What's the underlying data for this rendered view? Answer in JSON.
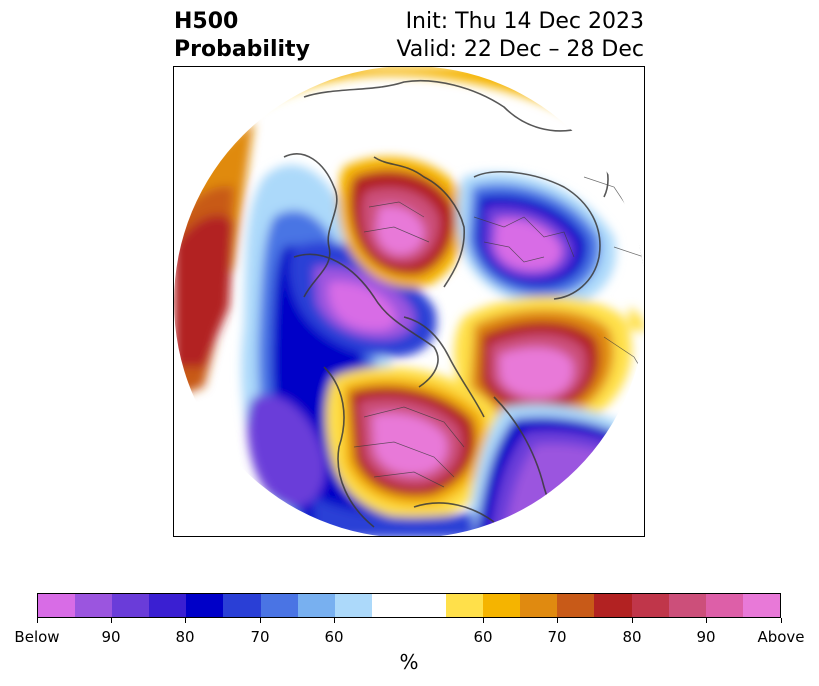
{
  "header": {
    "title_line1": "H500",
    "title_line2": "Probability",
    "init_text": "Init: Thu 14 Dec 2023",
    "valid_text": "Valid: 22 Dec – 28 Dec"
  },
  "colorbar": {
    "units": "%",
    "colors": [
      "#d86ce6",
      "#9b55df",
      "#6a3cd9",
      "#3a1fd2",
      "#0000c8",
      "#2a3fd6",
      "#4a74e4",
      "#78b0f0",
      "#acd9fa",
      "#ffffff",
      "#ffffff",
      "#ffe04a",
      "#f5b400",
      "#e08a10",
      "#c85a18",
      "#b22222",
      "#c0364a",
      "#cc4f7a",
      "#dd5fa8",
      "#e879d8"
    ],
    "tick_labels": [
      "Below",
      "90",
      "80",
      "70",
      "60",
      "60",
      "70",
      "80",
      "90",
      "Above"
    ]
  },
  "map": {
    "projection": "north-polar-stereographic",
    "legend_placement": "bottom"
  }
}
